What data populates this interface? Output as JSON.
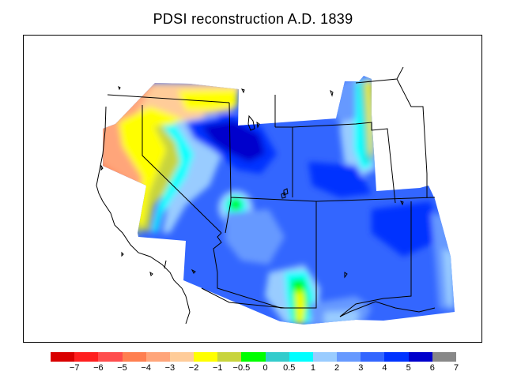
{
  "title": "PDSI reconstruction A.D. 1839",
  "legend": {
    "colors": [
      "#d90000",
      "#ff1f1f",
      "#ff4d4d",
      "#ff7f50",
      "#ffa57a",
      "#ffcc99",
      "#ffff00",
      "#c8d43c",
      "#00ff00",
      "#33cccc",
      "#00ffff",
      "#99ccff",
      "#6699ff",
      "#3366ff",
      "#0033ff",
      "#0000cc",
      "#888888"
    ],
    "labels": [
      "−7",
      "−6",
      "−5",
      "−4",
      "−3",
      "−2",
      "−1",
      "−0.5",
      "0",
      "0.5",
      "1",
      "2",
      "3",
      "4",
      "5",
      "6",
      "7"
    ]
  }
}
